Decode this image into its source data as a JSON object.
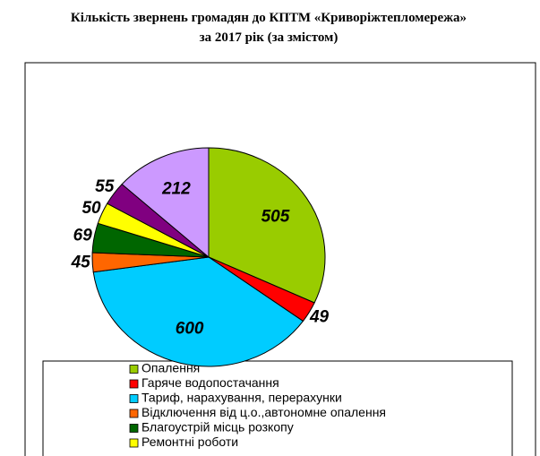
{
  "chart_data": {
    "type": "pie",
    "title": "Кількість звернень громадян до КПТМ «Криворіжтепломережа»",
    "subtitle": "за 2017 рік (за змістом)",
    "categories": [
      "Опалення",
      "Гаряче водопостачання",
      "Тариф, нарахування,  перерахунки",
      "Відключення від ц.о.,автономне опалення",
      "Благоустрій місць розкопу",
      "Ремонтні роботи",
      null,
      null
    ],
    "values": [
      505,
      49,
      600,
      45,
      69,
      50,
      55,
      212
    ],
    "colors": [
      "#99cc00",
      "#ff0000",
      "#00ccff",
      "#ff6600",
      "#006600",
      "#ffff00",
      "#800080",
      "#cc99ff"
    ]
  }
}
